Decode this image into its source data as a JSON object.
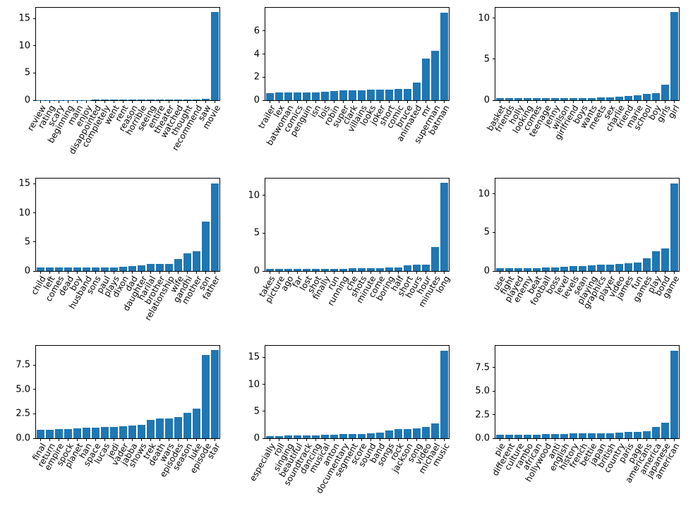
{
  "figure": {
    "background": "#ffffff",
    "bar_color": "#1f77b4",
    "axis_color": "#000000",
    "grid": false,
    "legend": null,
    "layout": "3x3 grid of bar charts"
  },
  "chart_data": [
    {
      "type": "bar",
      "position": "row 0, col 0",
      "categories": [
        "review",
        "rating",
        "scary",
        "beginning",
        "main",
        "enjoy",
        "disappointed",
        "completely",
        "went",
        "rent",
        "reason",
        "horrible",
        "seeing",
        "entire",
        "theater",
        "watched",
        "thought",
        "recommend",
        "saw",
        "movie"
      ],
      "values": [
        0.05,
        0.05,
        0.05,
        0.05,
        0.05,
        0.06,
        0.07,
        0.07,
        0.07,
        0.08,
        0.08,
        0.08,
        0.08,
        0.08,
        0.09,
        0.09,
        0.1,
        0.12,
        0.25,
        16.2
      ],
      "ytick_values": [
        0,
        5,
        10,
        15
      ],
      "ytick_labels": [
        "0",
        "5",
        "10",
        "15"
      ],
      "ylim": [
        0,
        17.0
      ],
      "title": "",
      "xlabel": "",
      "ylabel": ""
    },
    {
      "type": "bar",
      "position": "row 0, col 1",
      "categories": [
        "trailer",
        "lex",
        "batwoman",
        "comics",
        "penguin",
        "isn",
        "lois",
        "robin",
        "super",
        "clark",
        "villains",
        "looks",
        "joker",
        "short",
        "comic",
        "bruce",
        "animated",
        "mr",
        "superman",
        "batman"
      ],
      "values": [
        0.6,
        0.65,
        0.65,
        0.7,
        0.7,
        0.7,
        0.75,
        0.8,
        0.85,
        0.85,
        0.85,
        0.9,
        0.9,
        0.9,
        1.0,
        1.0,
        1.5,
        3.6,
        4.25,
        7.6
      ],
      "ytick_values": [
        0,
        2,
        4,
        6
      ],
      "ytick_labels": [
        "0",
        "2",
        "4",
        "6"
      ],
      "ylim": [
        0,
        8.0
      ],
      "title": "",
      "xlabel": "",
      "ylabel": ""
    },
    {
      "type": "bar",
      "position": "row 0, col 2",
      "categories": [
        "basket",
        "friends",
        "holly",
        "looking",
        "comes",
        "teenage",
        "jenny",
        "wilson",
        "girlfriend",
        "boys",
        "wants",
        "meets",
        "sex",
        "charlie",
        "friend",
        "marie",
        "school",
        "boy",
        "girls",
        "girl"
      ],
      "values": [
        0.25,
        0.25,
        0.25,
        0.3,
        0.3,
        0.3,
        0.3,
        0.3,
        0.3,
        0.3,
        0.3,
        0.35,
        0.35,
        0.4,
        0.55,
        0.6,
        0.75,
        0.9,
        1.85,
        10.7
      ],
      "ytick_values": [
        0,
        5,
        10
      ],
      "ytick_labels": [
        "0",
        "5",
        "10"
      ],
      "ylim": [
        0,
        11.25
      ],
      "title": "",
      "xlabel": "",
      "ylabel": ""
    },
    {
      "type": "bar",
      "position": "row 1, col 0",
      "categories": [
        "child",
        "left",
        "comes",
        "dead",
        "boy",
        "husband",
        "sons",
        "paul",
        "plays",
        "dixon",
        "dad",
        "daughter",
        "harilal",
        "brother",
        "relationship",
        "wife",
        "gandhi",
        "mother",
        "son",
        "father"
      ],
      "values": [
        0.55,
        0.55,
        0.55,
        0.55,
        0.55,
        0.6,
        0.6,
        0.65,
        0.65,
        0.7,
        0.9,
        0.95,
        1.2,
        1.2,
        1.25,
        2.1,
        3.0,
        3.4,
        8.5,
        15.1
      ],
      "ytick_values": [
        0,
        5,
        10,
        15
      ],
      "ytick_labels": [
        "0",
        "5",
        "10",
        "15"
      ],
      "ylim": [
        0,
        15.9
      ],
      "title": "",
      "xlabel": "",
      "ylabel": ""
    },
    {
      "type": "bar",
      "position": "row 1, col 1",
      "categories": [
        "takes",
        "picture",
        "ago",
        "far",
        "lost",
        "shot",
        "finally",
        "run",
        "running",
        "che",
        "shots",
        "minute",
        "come",
        "boring",
        "half",
        "short",
        "hours",
        "hour",
        "minutes",
        "long"
      ],
      "values": [
        0.25,
        0.25,
        0.25,
        0.25,
        0.3,
        0.3,
        0.3,
        0.3,
        0.3,
        0.35,
        0.35,
        0.4,
        0.4,
        0.45,
        0.5,
        0.75,
        0.8,
        0.85,
        3.2,
        11.6
      ],
      "ytick_values": [
        0,
        5,
        10
      ],
      "ytick_labels": [
        "0",
        "5",
        "10"
      ],
      "ylim": [
        0,
        12.2
      ],
      "title": "",
      "xlabel": "",
      "ylabel": ""
    },
    {
      "type": "bar",
      "position": "row 1, col 2",
      "categories": [
        "use",
        "fight",
        "played",
        "enemy",
        "beat",
        "football",
        "boss",
        "level",
        "levels",
        "sean",
        "playing",
        "graphics",
        "player",
        "video",
        "james",
        "fun",
        "games",
        "play",
        "bond",
        "game"
      ],
      "values": [
        0.4,
        0.4,
        0.4,
        0.4,
        0.4,
        0.45,
        0.5,
        0.55,
        0.6,
        0.65,
        0.75,
        0.8,
        0.85,
        0.9,
        1.0,
        1.1,
        1.65,
        2.55,
        2.95,
        11.4
      ],
      "ytick_values": [
        0,
        5,
        10
      ],
      "ytick_labels": [
        "0",
        "5",
        "10"
      ],
      "ylim": [
        0,
        12.0
      ],
      "title": "",
      "xlabel": "",
      "ylabel": ""
    },
    {
      "type": "bar",
      "position": "row 2, col 0",
      "categories": [
        "final",
        "return",
        "empire",
        "spock",
        "planet",
        "han",
        "space",
        "lucas",
        "jedi",
        "vader",
        "jabba",
        "shows",
        "trek",
        "death",
        "wars",
        "episodes",
        "season",
        "luke",
        "episode",
        "star"
      ],
      "values": [
        0.85,
        0.9,
        0.95,
        0.95,
        1.0,
        1.05,
        1.1,
        1.15,
        1.15,
        1.25,
        1.3,
        1.35,
        1.85,
        2.0,
        2.0,
        2.15,
        2.6,
        3.0,
        8.5,
        9.0
      ],
      "ytick_values": [
        0,
        2.5,
        5,
        7.5
      ],
      "ytick_labels": [
        "0.0",
        "2.5",
        "5.0",
        "7.5"
      ],
      "ylim": [
        0,
        9.45
      ],
      "title": "",
      "xlabel": "",
      "ylabel": ""
    },
    {
      "type": "bar",
      "position": "row 2, col 1",
      "categories": [
        "especially",
        "roll",
        "singing",
        "beautiful",
        "soundtrack",
        "dancing",
        "musical",
        "anton",
        "documentary",
        "segment",
        "score",
        "sound",
        "band",
        "songs",
        "rock",
        "jackson",
        "song",
        "video",
        "michael",
        "music"
      ],
      "values": [
        0.45,
        0.45,
        0.5,
        0.55,
        0.55,
        0.55,
        0.6,
        0.7,
        0.75,
        0.8,
        0.85,
        0.9,
        1.0,
        1.5,
        1.65,
        1.7,
        1.85,
        2.1,
        2.75,
        16.3
      ],
      "ytick_values": [
        0,
        5,
        10,
        15
      ],
      "ytick_labels": [
        "0",
        "5",
        "10",
        "15"
      ],
      "ylim": [
        0,
        17.15
      ],
      "title": "",
      "xlabel": "",
      "ylabel": ""
    },
    {
      "type": "bar",
      "position": "row 2, col 2",
      "categories": [
        "pie",
        "different",
        "culture",
        "rambo",
        "african",
        "hollywood",
        "anti",
        "english",
        "history",
        "french",
        "bettie",
        "japan",
        "british",
        "country",
        "paris",
        "page",
        "americans",
        "america",
        "japanese",
        "american"
      ],
      "values": [
        0.35,
        0.35,
        0.35,
        0.4,
        0.4,
        0.45,
        0.45,
        0.45,
        0.5,
        0.5,
        0.55,
        0.55,
        0.55,
        0.6,
        0.7,
        0.7,
        0.75,
        1.2,
        1.65,
        9.3
      ],
      "ytick_values": [
        0,
        2.5,
        5,
        7.5
      ],
      "ytick_labels": [
        "0.0",
        "2.5",
        "5.0",
        "7.5"
      ],
      "ylim": [
        0,
        9.8
      ],
      "title": "",
      "xlabel": "",
      "ylabel": ""
    }
  ]
}
